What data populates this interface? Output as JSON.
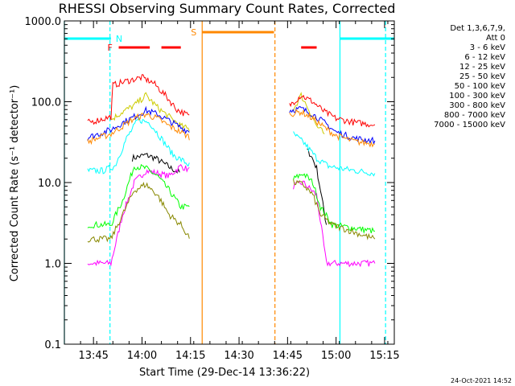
{
  "chart_data": {
    "type": "line",
    "title": "RHESSI Observing Summary Count Rates, Corrected",
    "xlabel": "Start Time (29-Dec-14 13:36:22)",
    "ylabel": "Corrected Count Rate (s⁻¹ detector⁻¹)",
    "yscale": "log",
    "ylim": [
      0.1,
      1000.0
    ],
    "xlim_minutes": [
      13.6,
      15.3
    ],
    "x_ticks": [
      {
        "label": "13:45",
        "t": 13.75
      },
      {
        "label": "14:00",
        "t": 14.0
      },
      {
        "label": "14:15",
        "t": 14.25
      },
      {
        "label": "14:30",
        "t": 14.5
      },
      {
        "label": "14:45",
        "t": 14.75
      },
      {
        "label": "15:00",
        "t": 15.0
      },
      {
        "label": "15:15",
        "t": 15.25
      }
    ],
    "y_ticks": [
      {
        "label": "1000.0",
        "v": 1000
      },
      {
        "label": "100.0",
        "v": 100
      },
      {
        "label": "10.0",
        "v": 10
      },
      {
        "label": "1.0",
        "v": 1
      },
      {
        "label": "0.1",
        "v": 0.1
      }
    ],
    "grid": false,
    "legend": {
      "header": [
        "Det 1,3,6,7,9,",
        "Att 0"
      ],
      "placement": "right"
    },
    "series": [
      {
        "name": "3 - 6 keV",
        "color": "#000000",
        "x": [
          13.95,
          14.02,
          14.07,
          14.15,
          14.2,
          14.85,
          14.87,
          14.9,
          14.92,
          14.95
        ],
        "y": [
          20,
          22,
          20,
          15,
          13,
          25,
          22,
          15,
          8,
          3
        ]
      },
      {
        "name": "6 - 12 keV",
        "color": "#ff00ff",
        "x": [
          13.72,
          13.84,
          13.9,
          13.96,
          14.02,
          14.08,
          14.14,
          14.2,
          14.25,
          14.78,
          14.83,
          14.9,
          14.95,
          15.0,
          15.2
        ],
        "y": [
          1.0,
          1.0,
          4,
          10,
          14,
          13,
          12,
          16,
          14,
          9,
          10,
          7,
          1.0,
          1.0,
          1.0
        ]
      },
      {
        "name": "12 - 25 keV",
        "color": "#00ff00",
        "x": [
          13.72,
          13.84,
          13.9,
          13.96,
          14.02,
          14.08,
          14.14,
          14.2,
          14.25,
          14.78,
          14.83,
          14.88,
          14.92,
          14.98,
          15.2
        ],
        "y": [
          3,
          3,
          6,
          16,
          15,
          12,
          8,
          5,
          5,
          11,
          13,
          10,
          5,
          3,
          2.5
        ]
      },
      {
        "name": "25 - 50 keV",
        "color": "#00ffff",
        "x": [
          13.72,
          13.8,
          13.86,
          13.92,
          13.98,
          14.04,
          14.1,
          14.16,
          14.22,
          14.25,
          14.78,
          14.84,
          14.9,
          14.96,
          15.02,
          15.1,
          15.2
        ],
        "y": [
          14,
          14,
          16,
          35,
          60,
          55,
          35,
          22,
          18,
          16,
          40,
          30,
          20,
          16,
          15,
          14,
          13
        ]
      },
      {
        "name": "50 - 100 keV",
        "color": "#cccc00",
        "x": [
          13.84,
          13.9,
          13.96,
          14.02,
          14.08,
          14.14,
          14.2,
          14.25,
          14.78,
          14.82,
          14.86,
          14.9,
          14.94
        ],
        "y": [
          60,
          75,
          90,
          120,
          85,
          65,
          50,
          45,
          80,
          120,
          80,
          50,
          40
        ]
      },
      {
        "name": "100 - 300 keV",
        "color": "#ff0000",
        "x": [
          13.72,
          13.84,
          13.85,
          13.92,
          14.0,
          14.06,
          14.12,
          14.18,
          14.25,
          14.76,
          14.82,
          14.88,
          14.94,
          15.0,
          15.1,
          15.2
        ],
        "y": [
          55,
          65,
          160,
          180,
          200,
          170,
          120,
          80,
          65,
          90,
          120,
          100,
          75,
          62,
          55,
          52
        ]
      },
      {
        "name": "300 - 800 keV",
        "color": "#0000ff",
        "x": [
          13.72,
          13.84,
          13.9,
          13.96,
          14.02,
          14.08,
          14.14,
          14.2,
          14.25,
          14.76,
          14.82,
          14.88,
          14.94,
          15.0,
          15.1,
          15.2
        ],
        "y": [
          36,
          45,
          55,
          65,
          78,
          70,
          58,
          48,
          42,
          78,
          82,
          70,
          55,
          42,
          35,
          33
        ]
      },
      {
        "name": "800 - 7000 keV",
        "color": "#ff8800",
        "x": [
          13.72,
          13.84,
          13.9,
          13.96,
          14.02,
          14.08,
          14.14,
          14.2,
          14.25,
          14.76,
          14.82,
          14.88,
          14.94,
          15.0,
          15.1,
          15.2
        ],
        "y": [
          32,
          40,
          50,
          62,
          70,
          62,
          50,
          42,
          36,
          70,
          75,
          62,
          48,
          38,
          32,
          30
        ]
      },
      {
        "name": "7000 - 15000 keV",
        "color": "#888800",
        "x": [
          13.72,
          13.84,
          13.9,
          13.96,
          14.02,
          14.08,
          14.14,
          14.2,
          14.25,
          14.78,
          14.83,
          14.88,
          14.92,
          14.98,
          15.2
        ],
        "y": [
          2,
          2,
          4,
          8,
          9.5,
          7,
          4,
          3,
          2,
          10,
          9.5,
          7,
          4,
          3,
          2
        ]
      }
    ],
    "markers": {
      "top_bars": [
        {
          "label": "N",
          "color": "#00ffff",
          "segments": [
            [
              13.6,
              13.84
            ],
            [
              15.02,
              15.3
            ]
          ]
        },
        {
          "label": "F",
          "color": "#ff0000",
          "segments": [
            [
              13.88,
              14.04
            ],
            [
              14.1,
              14.2
            ],
            [
              14.82,
              14.9
            ]
          ]
        },
        {
          "label": "S",
          "color": "#ff8800",
          "segments": [
            [
              14.31,
              14.68
            ]
          ]
        }
      ],
      "vertical_lines": [
        {
          "t": 13.6,
          "color": "#00ffff",
          "style": "solid"
        },
        {
          "t": 13.835,
          "color": "#00ffff",
          "style": "dashed"
        },
        {
          "t": 14.31,
          "color": "#ff8800",
          "style": "solid"
        },
        {
          "t": 14.685,
          "color": "#ff8800",
          "style": "dashed"
        },
        {
          "t": 15.02,
          "color": "#00ffff",
          "style": "solid"
        },
        {
          "t": 15.255,
          "color": "#00ffff",
          "style": "dashed"
        }
      ]
    },
    "footer_timestamp": "24-Oct-2021 14:52"
  }
}
